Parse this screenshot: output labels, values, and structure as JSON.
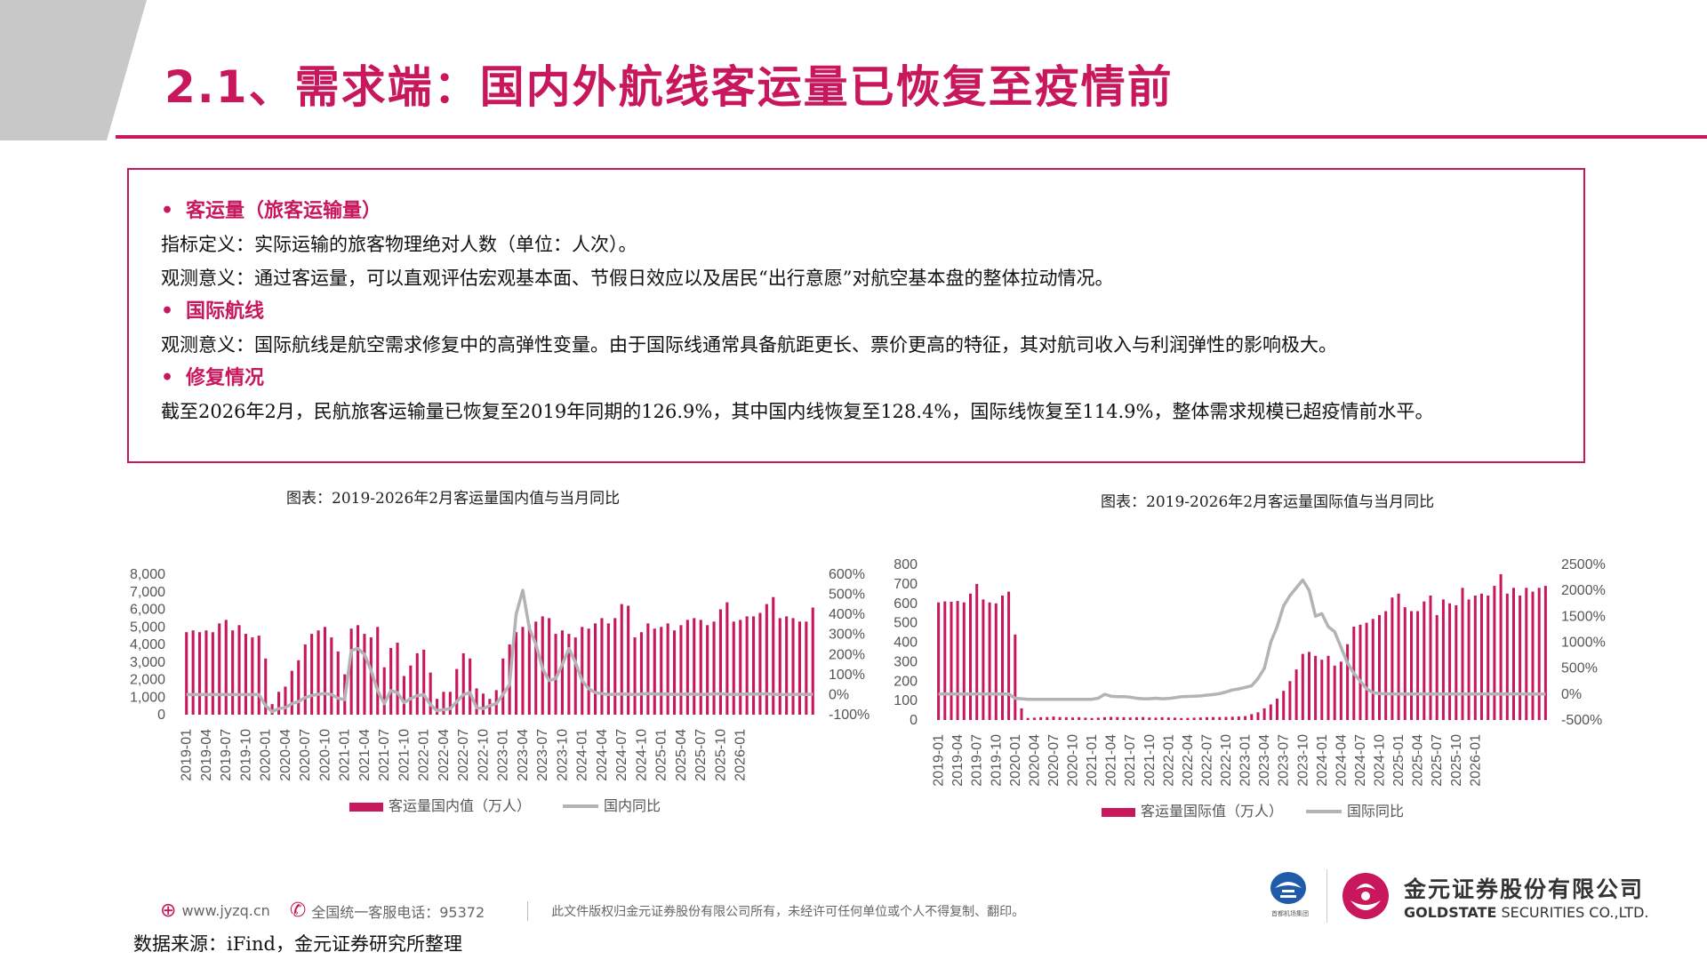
{
  "header": {
    "title": "2.1、需求端：国内外航线客运量已恢复至疫情前"
  },
  "summary": {
    "section1_title": "客运量（旅客运输量）",
    "section1_line1": "指标定义：实际运输的旅客物理绝对人数（单位：人次）。",
    "section1_line2": "观测意义：通过客运量，可以直观评估宏观基本面、节假日效应以及居民“出行意愿”对航空基本盘的整体拉动情况。",
    "section2_title": "国际航线",
    "section2_line1": "观测意义：国际航线是航空需求修复中的高弹性变量。由于国际线通常具备航距更长、票价更高的特征，其对航司收入与利润弹性的影响极大。",
    "section3_title": "修复情况",
    "section3_line1": "截至2026年2月，民航旅客运输量已恢复至2019年同期的126.9%，其中国内线恢复至128.4%，国际线恢复至114.9%，整体需求规模已超疫情前水平。",
    "bullet": "•"
  },
  "colors": {
    "accent": "#c8175d",
    "bar": "#c8175d",
    "line": "#b3b3b3"
  },
  "chart_data": [
    {
      "type": "bar",
      "caption": "图表：2019-2026年2月客运量国内值与当月同比",
      "ylim": [
        0,
        8000
      ],
      "y2lim": [
        -100,
        600
      ],
      "ytick_labels": [
        "0",
        "1,000",
        "2,000",
        "3,000",
        "4,000",
        "5,000",
        "6,000",
        "7,000",
        "8,000"
      ],
      "y2tick_labels": [
        "-100%",
        "0%",
        "100%",
        "200%",
        "300%",
        "400%",
        "500%",
        "600%"
      ],
      "xtick_labels": [
        "2019-01",
        "2019-04",
        "2019-07",
        "2019-10",
        "2020-01",
        "2020-04",
        "2020-07",
        "2020-10",
        "2021-01",
        "2021-04",
        "2021-07",
        "2021-10",
        "2022-01",
        "2022-04",
        "2022-07",
        "2022-10",
        "2023-01",
        "2023-04",
        "2023-07",
        "2023-10",
        "2024-01",
        "2024-04",
        "2024-07",
        "2024-10",
        "2025-01",
        "2025-04",
        "2025-07",
        "2025-10",
        "2026-01"
      ],
      "legend": [
        "客运量国内值（万人）",
        "国内同比"
      ],
      "legend_position": "bottom",
      "series": [
        {
          "name": "客运量国内值（万人）",
          "axis": "left",
          "values": [
            4700,
            4800,
            4700,
            4800,
            4700,
            5200,
            5400,
            4800,
            5100,
            4600,
            4400,
            4500,
            3200,
            600,
            1300,
            1600,
            2500,
            3100,
            4000,
            4600,
            4800,
            5000,
            4400,
            3600,
            2300,
            4900,
            5100,
            4600,
            4400,
            5000,
            2700,
            3800,
            4100,
            2200,
            2800,
            3500,
            3700,
            2400,
            900,
            1300,
            1300,
            2600,
            3500,
            3200,
            1500,
            1200,
            900,
            1400,
            3200,
            4000,
            4700,
            5000,
            5100,
            5300,
            5600,
            5500,
            4600,
            4800,
            4600,
            4400,
            5000,
            4900,
            5200,
            5500,
            5200,
            5500,
            6300,
            6200,
            4400,
            4700,
            5200,
            4900,
            5000,
            5200,
            4800,
            5100,
            5400,
            5500,
            5400,
            5100,
            5300,
            6000,
            6400,
            5300,
            5400,
            5600,
            5600,
            5800,
            6300,
            6700,
            5500,
            5600,
            5500,
            5300,
            5300,
            6100
          ]
        },
        {
          "name": "国内同比",
          "axis": "right",
          "values": [
            0,
            0,
            0,
            0,
            0,
            0,
            0,
            0,
            0,
            0,
            0,
            0,
            -55,
            -85,
            -70,
            -65,
            -45,
            -35,
            -15,
            -5,
            2,
            5,
            0,
            -18,
            -25,
            220,
            230,
            200,
            120,
            20,
            -45,
            20,
            10,
            -40,
            -20,
            -5,
            0,
            -50,
            -80,
            -75,
            -70,
            -35,
            0,
            10,
            -65,
            -70,
            -55,
            -45,
            0,
            50,
            400,
            520,
            330,
            250,
            130,
            70,
            80,
            150,
            230,
            160,
            70,
            30,
            10,
            5,
            0,
            2,
            3,
            2,
            0,
            3,
            5,
            3,
            2,
            3,
            1,
            2,
            3,
            2,
            1,
            2,
            3,
            4,
            2,
            1,
            2,
            3,
            2,
            3,
            4,
            2,
            1,
            0,
            1,
            2,
            1,
            2
          ]
        }
      ]
    },
    {
      "type": "bar",
      "caption": "图表：2019-2026年2月客运量国际值与当月同比",
      "ylim": [
        0,
        800
      ],
      "y2lim": [
        -500,
        2500
      ],
      "ytick_labels": [
        "0",
        "100",
        "200",
        "300",
        "400",
        "500",
        "600",
        "700",
        "800"
      ],
      "y2tick_labels": [
        "-500%",
        "0%",
        "500%",
        "1000%",
        "1500%",
        "2000%",
        "2500%"
      ],
      "xtick_labels": [
        "2019-01",
        "2019-04",
        "2019-07",
        "2019-10",
        "2020-01",
        "2020-04",
        "2020-07",
        "2020-10",
        "2021-01",
        "2021-04",
        "2021-07",
        "2021-10",
        "2022-01",
        "2022-04",
        "2022-07",
        "2022-10",
        "2023-01",
        "2023-04",
        "2023-07",
        "2023-10",
        "2024-01",
        "2024-04",
        "2024-07",
        "2024-10",
        "2025-01",
        "2025-04",
        "2025-07",
        "2025-10",
        "2026-01"
      ],
      "legend": [
        "客运量国际值（万人）",
        "国际同比"
      ],
      "legend_position": "bottom",
      "series": [
        {
          "name": "客运量国际值（万人）",
          "axis": "left",
          "values": [
            605,
            610,
            608,
            612,
            605,
            650,
            700,
            620,
            605,
            600,
            640,
            660,
            440,
            60,
            10,
            12,
            14,
            15,
            18,
            15,
            14,
            13,
            14,
            12,
            10,
            12,
            14,
            16,
            15,
            14,
            13,
            14,
            15,
            13,
            12,
            14,
            13,
            12,
            10,
            11,
            12,
            13,
            14,
            15,
            15,
            16,
            17,
            18,
            20,
            30,
            40,
            60,
            80,
            110,
            150,
            200,
            260,
            340,
            350,
            330,
            310,
            330,
            280,
            300,
            390,
            480,
            490,
            500,
            520,
            540,
            560,
            630,
            650,
            580,
            560,
            560,
            610,
            640,
            540,
            620,
            600,
            590,
            680,
            620,
            640,
            650,
            640,
            690,
            750,
            650,
            680,
            640,
            680,
            660,
            680,
            690
          ]
        },
        {
          "name": "国际同比",
          "axis": "right",
          "values": [
            0,
            0,
            0,
            0,
            0,
            0,
            0,
            0,
            0,
            0,
            0,
            0,
            -80,
            -90,
            -100,
            -100,
            -100,
            -100,
            -100,
            -100,
            -100,
            -100,
            -100,
            -100,
            -100,
            -80,
            -5,
            -40,
            -50,
            -50,
            -60,
            -80,
            -90,
            -90,
            -80,
            -90,
            -85,
            -70,
            -50,
            -45,
            -40,
            -35,
            -20,
            -10,
            10,
            40,
            80,
            100,
            130,
            160,
            300,
            500,
            1000,
            1300,
            1700,
            1900,
            2050,
            2200,
            2000,
            1500,
            1550,
            1300,
            1200,
            900,
            600,
            400,
            250,
            100,
            30,
            10,
            5,
            3,
            2,
            1,
            0,
            1,
            2,
            1,
            0,
            1,
            2,
            3,
            2,
            1,
            0,
            1,
            2,
            1,
            0,
            1,
            2,
            1,
            0,
            1,
            2,
            1
          ]
        }
      ]
    }
  ],
  "footer": {
    "site": "www.jyzq.cn",
    "hotline": "全国统一客服电话：95372",
    "copyright": "此文件版权归金元证券股份有限公司所有，未经许可任何单位或个人不得复制、翻印。",
    "logo_cn": "金元证券股份有限公司",
    "logo_en_bold": "GOLDSTATE",
    "logo_en_rest": " SECURITIES CO.,LTD.",
    "capital_caption": "首都机场集团"
  },
  "source_note": "数据来源：iFind，金元证券研究所整理"
}
